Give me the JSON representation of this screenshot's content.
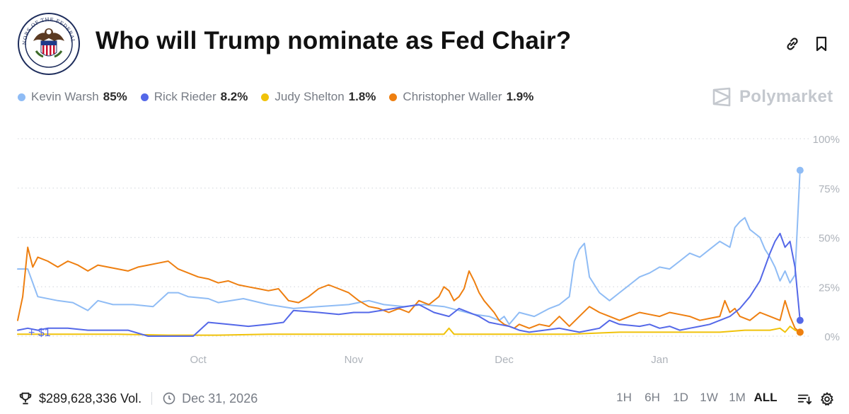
{
  "header": {
    "title": "Who will Trump nominate as Fed Chair?",
    "logo_alt": "BOARD OF GOVERNORS OF THE FEDERAL RESERVE SYSTEM"
  },
  "legend": [
    {
      "name": "Kevin Warsh",
      "value": "85%",
      "color": "#8fbcf5"
    },
    {
      "name": "Rick Rieder",
      "value": "8.2%",
      "color": "#5468e8"
    },
    {
      "name": "Judy Shelton",
      "value": "1.8%",
      "color": "#f0c20a"
    },
    {
      "name": "Christopher Waller",
      "value": "1.9%",
      "color": "#ee7f10"
    }
  ],
  "brand": "Polymarket",
  "footer": {
    "volume": "$289,628,336 Vol.",
    "end_date": "Dec 31, 2026",
    "ranges": [
      "1H",
      "6H",
      "1D",
      "1W",
      "1M",
      "ALL"
    ],
    "active_range": "ALL"
  },
  "chart_data": {
    "type": "line",
    "x_ticks": [
      "Oct",
      "Nov",
      "Dec",
      "Jan"
    ],
    "x_tick_days": [
      36,
      67,
      97,
      128
    ],
    "x_range": [
      0,
      158
    ],
    "y_ticks": [
      "0%",
      "25%",
      "50%",
      "75%",
      "100%"
    ],
    "y_tick_values": [
      0,
      25,
      50,
      75,
      100
    ],
    "ylim": [
      0,
      100
    ],
    "annotation": "+ $1",
    "grid": true,
    "series": [
      {
        "name": "Kevin Warsh",
        "color": "#8fbcf5",
        "x": [
          0,
          2,
          4,
          8,
          11,
          14,
          16,
          19,
          23,
          27,
          30,
          32,
          34,
          38,
          40,
          45,
          50,
          55,
          60,
          66,
          70,
          73,
          77,
          81,
          85,
          88,
          91,
          94,
          96,
          97,
          98,
          100,
          103,
          106,
          108,
          110,
          111,
          112,
          113,
          114,
          116,
          118,
          120,
          122,
          124,
          126,
          128,
          130,
          132,
          134,
          136,
          138,
          140,
          142,
          143,
          144,
          145,
          146,
          147,
          148,
          149,
          150,
          151,
          152,
          153,
          154,
          155,
          156
        ],
        "y": [
          34,
          34,
          20,
          18,
          17,
          13,
          18,
          16,
          16,
          15,
          22,
          22,
          20,
          19,
          17,
          19,
          16,
          14,
          15,
          16,
          18,
          16,
          15,
          16,
          15,
          13,
          11,
          10,
          8,
          10,
          6,
          12,
          10,
          14,
          16,
          20,
          38,
          44,
          47,
          30,
          22,
          18,
          22,
          26,
          30,
          32,
          35,
          34,
          38,
          42,
          40,
          44,
          48,
          45,
          55,
          58,
          60,
          54,
          52,
          50,
          44,
          40,
          35,
          28,
          33,
          27,
          31,
          84
        ]
      },
      {
        "name": "Rick Rieder",
        "color": "#5468e8",
        "x": [
          0,
          2,
          4,
          6,
          10,
          14,
          17,
          22,
          26,
          30,
          35,
          38,
          42,
          46,
          50,
          53,
          55,
          60,
          64,
          67,
          70,
          75,
          80,
          83,
          86,
          88,
          90,
          92,
          94,
          96,
          98,
          100,
          102,
          105,
          108,
          110,
          112,
          114,
          116,
          118,
          120,
          124,
          126,
          128,
          130,
          132,
          134,
          136,
          138,
          140,
          142,
          144,
          146,
          148,
          149,
          150,
          151,
          152,
          153,
          154,
          155,
          156
        ],
        "y": [
          3,
          4,
          3,
          4,
          4,
          3,
          3,
          3,
          0,
          0,
          0,
          7,
          6,
          5,
          6,
          7,
          13,
          12,
          11,
          12,
          12,
          14,
          16,
          12,
          10,
          14,
          12,
          10,
          7,
          6,
          5,
          3,
          2,
          3,
          4,
          3,
          2,
          3,
          4,
          8,
          6,
          5,
          6,
          4,
          5,
          3,
          4,
          5,
          6,
          8,
          10,
          14,
          20,
          28,
          35,
          42,
          48,
          52,
          45,
          48,
          35,
          8
        ]
      },
      {
        "name": "Judy Shelton",
        "color": "#f0c20a",
        "x": [
          0,
          10,
          20,
          30,
          40,
          50,
          60,
          70,
          80,
          85,
          86,
          87,
          90,
          100,
          110,
          120,
          130,
          140,
          145,
          150,
          152,
          153,
          154,
          155,
          156
        ],
        "y": [
          1,
          1,
          1,
          0.5,
          0.5,
          1,
          1,
          1,
          1,
          1,
          4,
          1,
          1,
          1,
          1,
          2,
          2,
          2,
          3,
          3,
          4,
          2,
          5,
          3,
          2
        ]
      },
      {
        "name": "Christopher Waller",
        "color": "#ee7f10",
        "x": [
          0,
          1,
          2,
          3,
          4,
          6,
          8,
          10,
          12,
          14,
          16,
          18,
          20,
          22,
          24,
          26,
          28,
          30,
          32,
          34,
          36,
          38,
          40,
          42,
          44,
          46,
          48,
          50,
          52,
          54,
          56,
          58,
          60,
          62,
          64,
          66,
          68,
          70,
          72,
          74,
          76,
          78,
          80,
          82,
          84,
          85,
          86,
          87,
          88,
          89,
          90,
          91,
          92,
          93,
          94,
          95,
          96,
          97,
          98,
          99,
          100,
          101,
          102,
          104,
          106,
          108,
          110,
          112,
          114,
          116,
          118,
          120,
          122,
          124,
          126,
          128,
          130,
          132,
          134,
          136,
          138,
          140,
          141,
          142,
          143,
          144,
          146,
          148,
          150,
          152,
          153,
          154,
          155,
          156
        ],
        "y": [
          8,
          20,
          45,
          35,
          40,
          38,
          35,
          38,
          36,
          33,
          36,
          35,
          34,
          33,
          35,
          36,
          37,
          38,
          34,
          32,
          30,
          29,
          27,
          28,
          26,
          25,
          24,
          23,
          24,
          18,
          17,
          20,
          24,
          26,
          24,
          22,
          18,
          15,
          14,
          12,
          14,
          12,
          18,
          16,
          20,
          25,
          23,
          18,
          20,
          24,
          33,
          28,
          22,
          18,
          15,
          12,
          8,
          6,
          5,
          4,
          6,
          5,
          4,
          6,
          5,
          10,
          5,
          10,
          15,
          12,
          10,
          8,
          10,
          12,
          11,
          10,
          12,
          11,
          10,
          8,
          9,
          10,
          18,
          12,
          14,
          10,
          8,
          12,
          10,
          8,
          18,
          10,
          4,
          2
        ]
      }
    ]
  }
}
